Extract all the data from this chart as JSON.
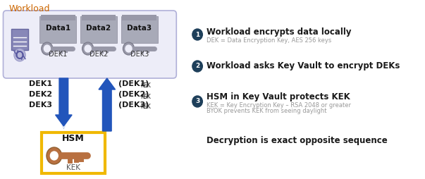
{
  "bg_color": "#ffffff",
  "title_workload": "Workload",
  "title_color": "#cc6600",
  "workload_box_edge": "#b0b0d8",
  "workload_box_fill": "#ededf8",
  "data_box_fill": "#a8aab8",
  "data_box_edge": "#888898",
  "data_labels": [
    "Data1",
    "Data2",
    "Data3"
  ],
  "dek_labels": [
    "DEK1",
    "DEK2",
    "DEK3"
  ],
  "server_fill": "#8888b8",
  "server_edge": "#6868a0",
  "key_gray": "#9898a8",
  "key_ring_fill": "#b0b0c0",
  "arrow_color": "#2255bb",
  "left_dek_text": [
    "DEK1",
    "DEK2",
    "DEK3"
  ],
  "right_dek_main": [
    "(DEK1)",
    "(DEK2)",
    "(DEK3)"
  ],
  "right_dek_sub": [
    "KEK",
    "KEK",
    "KEK"
  ],
  "hsm_box_edge": "#f0b800",
  "hsm_box_fill": "#ffffff",
  "hsm_label": "HSM",
  "kek_label": "KEK",
  "key_brown": "#b87040",
  "key_brown_dark": "#906030",
  "step1_num": "1",
  "step1_text": "Workload encrypts data locally",
  "step1_sub": "DEK = Data Encryption Key, AES 256 keys",
  "step2_num": "2",
  "step2_text": "Workload asks Key Vault to encrypt DEKs",
  "step3_num": "3",
  "step3_text": "HSM in Key Vault protects KEK",
  "step3_sub1": "KEK = Key Encryption Key – RSA 2048 or greater",
  "step3_sub2": "BYOK prevents KEK from seeing daylight",
  "final_text": "Decryption is exact opposite sequence",
  "circle_fill": "#1e3f5a",
  "step_bold_color": "#1a1a1a",
  "sub_color": "#999999"
}
